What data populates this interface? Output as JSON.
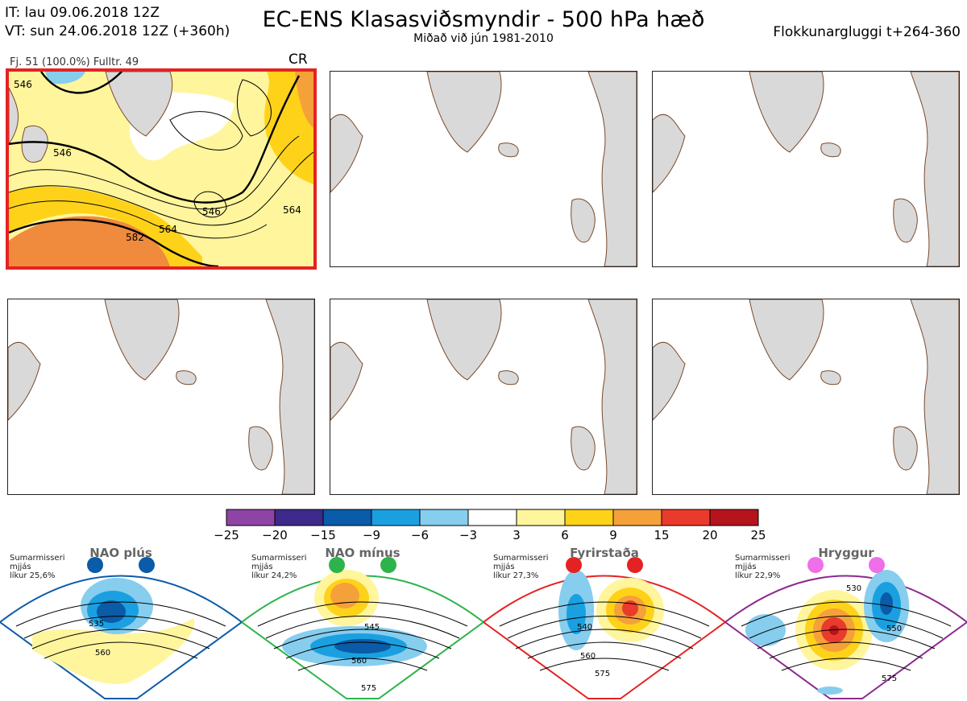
{
  "header": {
    "it_line": "IT: lau 09.06.2018 12Z",
    "vt_line": "VT: sun 24.06.2018 12Z  (+360h)",
    "title": "EC-ENS Klasasviðsmyndir - 500 hPa hæð",
    "subtitle": "Miðað við jún 1981-2010",
    "window": "Flokkunargluggi t+264-360"
  },
  "selected_panel": {
    "members": "Fj. 51 (100.0%)   Fulltr. 49",
    "code": "CR",
    "contour_labels": [
      "546",
      "564",
      "582",
      "564",
      "546",
      "546"
    ]
  },
  "colorbar": {
    "ticks": [
      "−25",
      "−20",
      "−15",
      "−9",
      "−6",
      "−3",
      "3",
      "6",
      "9",
      "15",
      "20",
      "25"
    ],
    "colors": [
      "#8e44a4",
      "#3d2a8a",
      "#0a5ba8",
      "#1aa0e0",
      "#86cdee",
      "#ffffff",
      "#fff59d",
      "#ffd21a",
      "#f5a13a",
      "#ea3a2c",
      "#b4151c"
    ]
  },
  "regimes": [
    {
      "name": "NAO plús",
      "season": "Sumarmisseri",
      "smooth": "mjjás",
      "prob": "líkur 25,6%",
      "color": "#0a5ba8",
      "labels": [
        "535",
        "560"
      ]
    },
    {
      "name": "NAO mínus",
      "season": "Sumarmisseri",
      "smooth": "mjjás",
      "prob": "líkur 24,2%",
      "color": "#2db34a",
      "labels": [
        "545",
        "560",
        "575"
      ]
    },
    {
      "name": "Fyrirstaða",
      "season": "Sumarmisseri",
      "smooth": "mjjás",
      "prob": "líkur 27,3%",
      "color": "#e52222",
      "labels": [
        "540",
        "560",
        "575"
      ]
    },
    {
      "name": "Hryggur",
      "season": "Sumarmisseri",
      "smooth": "mjjás",
      "prob": "líkur 22,9%",
      "color": "#8b2a8f",
      "labels": [
        "530",
        "550",
        "575"
      ]
    }
  ]
}
